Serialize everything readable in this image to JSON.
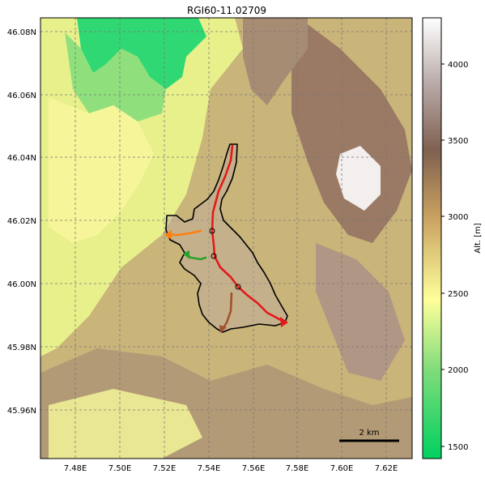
{
  "title": "RGI60-11.02709",
  "map": {
    "lon_ticks": [
      "7.48E",
      "7.50E",
      "7.52E",
      "7.54E",
      "7.56E",
      "7.58E",
      "7.60E",
      "7.62E"
    ],
    "lat_ticks": [
      "46.08N",
      "46.06N",
      "46.04N",
      "46.02N",
      "46.00N",
      "45.98N",
      "45.96N"
    ],
    "scale_bar": {
      "label": "2 km",
      "length_km": 2
    },
    "grid": true,
    "glacier_outline_color": "#000000",
    "flowlines": [
      {
        "color": "#e31a1c",
        "role": "main"
      },
      {
        "color": "#ff7f0e",
        "role": "tributary"
      },
      {
        "color": "#2ca02c",
        "role": "tributary"
      },
      {
        "color": "#a0522d",
        "role": "tributary"
      }
    ]
  },
  "colorbar": {
    "label": "Alt. [m]",
    "ticks": [
      "1500",
      "2000",
      "2500",
      "3000",
      "3500",
      "4000"
    ],
    "range": [
      1440,
      4290
    ],
    "colors": [
      "#00d060",
      "#7fdc7a",
      "#ffff9a",
      "#c8a060",
      "#806050",
      "#b8aaa8",
      "#ffffff"
    ]
  }
}
